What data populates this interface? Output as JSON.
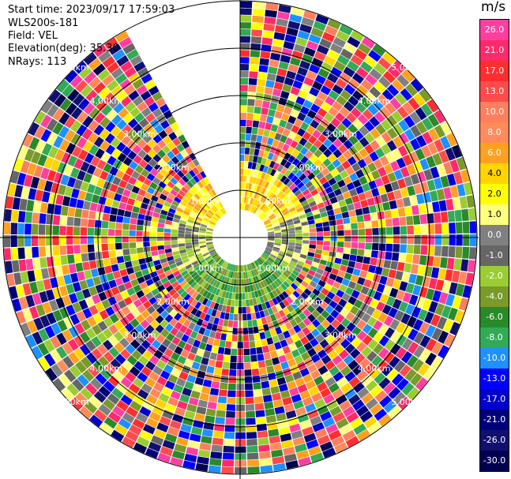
{
  "info": {
    "start_time": "Start time: 2023/09/17 17:59:03",
    "site": "WLS200s-181",
    "field": "Field: VEL",
    "elevation": "Elevation(deg): 35.30",
    "nrays": "NRays: 113"
  },
  "colorbar": {
    "unit": "m/s",
    "labels": [
      "26.0",
      "21.0",
      "17.0",
      "13.0",
      "10.0",
      "8.0",
      "6.0",
      "4.0",
      "2.0",
      "1.0",
      "0.0",
      "-1.0",
      "-2.0",
      "-4.0",
      "-6.0",
      "-8.0",
      "-10.0",
      "-13.0",
      "-17.0",
      "-21.0",
      "-26.0",
      "-30.0"
    ],
    "colors": [
      "#ff3fa0",
      "#ff2a6a",
      "#ff2e2e",
      "#ff4b4b",
      "#ff7e5e",
      "#ff8a5a",
      "#ffa020",
      "#ffd400",
      "#ffff00",
      "#ffff80",
      "#808080",
      "#666666",
      "#9acd32",
      "#7a9a2a",
      "#2a8a2a",
      "#33aa55",
      "#1e90ff",
      "#0000ff",
      "#0000cc",
      "#00007a",
      "#101070",
      "#000050"
    ]
  },
  "range_labels": [
    "1.00km",
    "2.00km",
    "3.00km",
    "4.00km",
    "5.00km"
  ]
}
